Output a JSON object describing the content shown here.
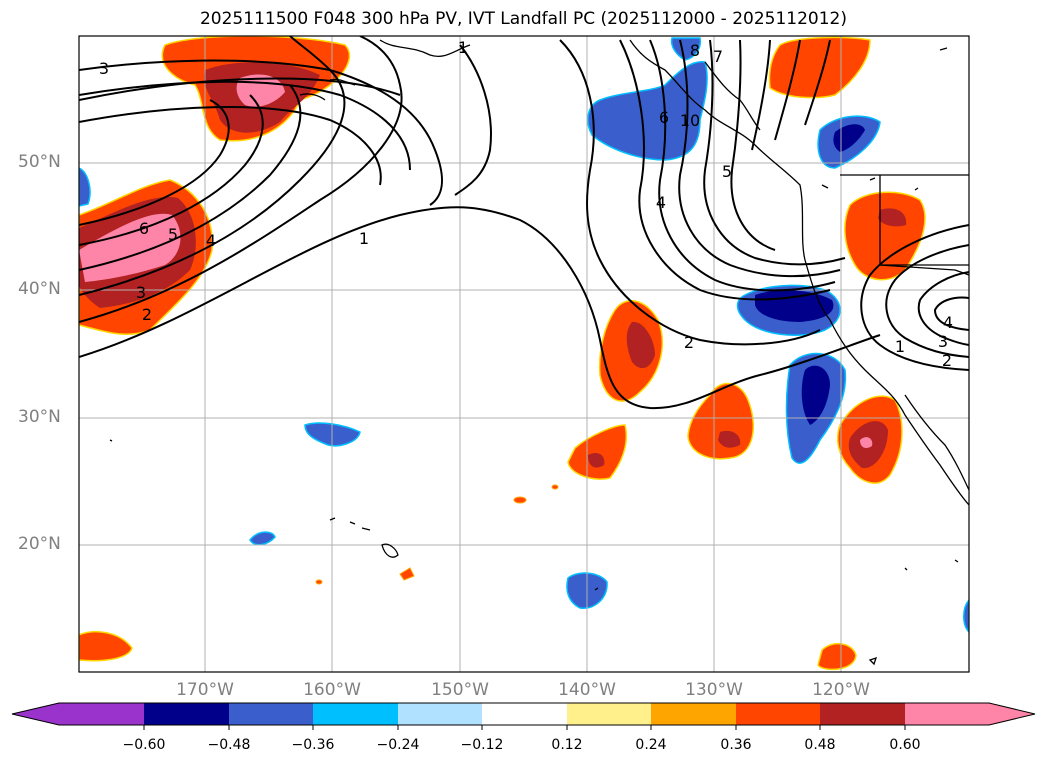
{
  "title": "2025111500 F048 300 hPa PV, IVT Landfall PC (2025112000 - 2025112012)",
  "lat_labels": [
    "50°N",
    "40°N",
    "30°N",
    "20°N"
  ],
  "lon_labels": [
    "170°W",
    "160°W",
    "150°W",
    "140°W",
    "130°W",
    "120°W"
  ],
  "colorbar": {
    "colors": [
      "#9933cc",
      "#00008b",
      "#3a5fcd",
      "#00bfff",
      "#b0e2ff",
      "#ffffff",
      "#fff08b",
      "#ffa500",
      "#ff4500",
      "#b22222",
      "#ff85a8"
    ],
    "ticks": [
      "−0.60",
      "−0.48",
      "−0.36",
      "−0.24",
      "−0.12",
      "0.12",
      "0.24",
      "0.36",
      "0.48",
      "0.60"
    ]
  },
  "contour_labels": [
    "3",
    "1",
    "6",
    "5",
    "4",
    "3",
    "2",
    "1",
    "8",
    "7",
    "6",
    "10",
    "5",
    "4",
    "2",
    "4",
    "3",
    "2",
    "1"
  ]
}
